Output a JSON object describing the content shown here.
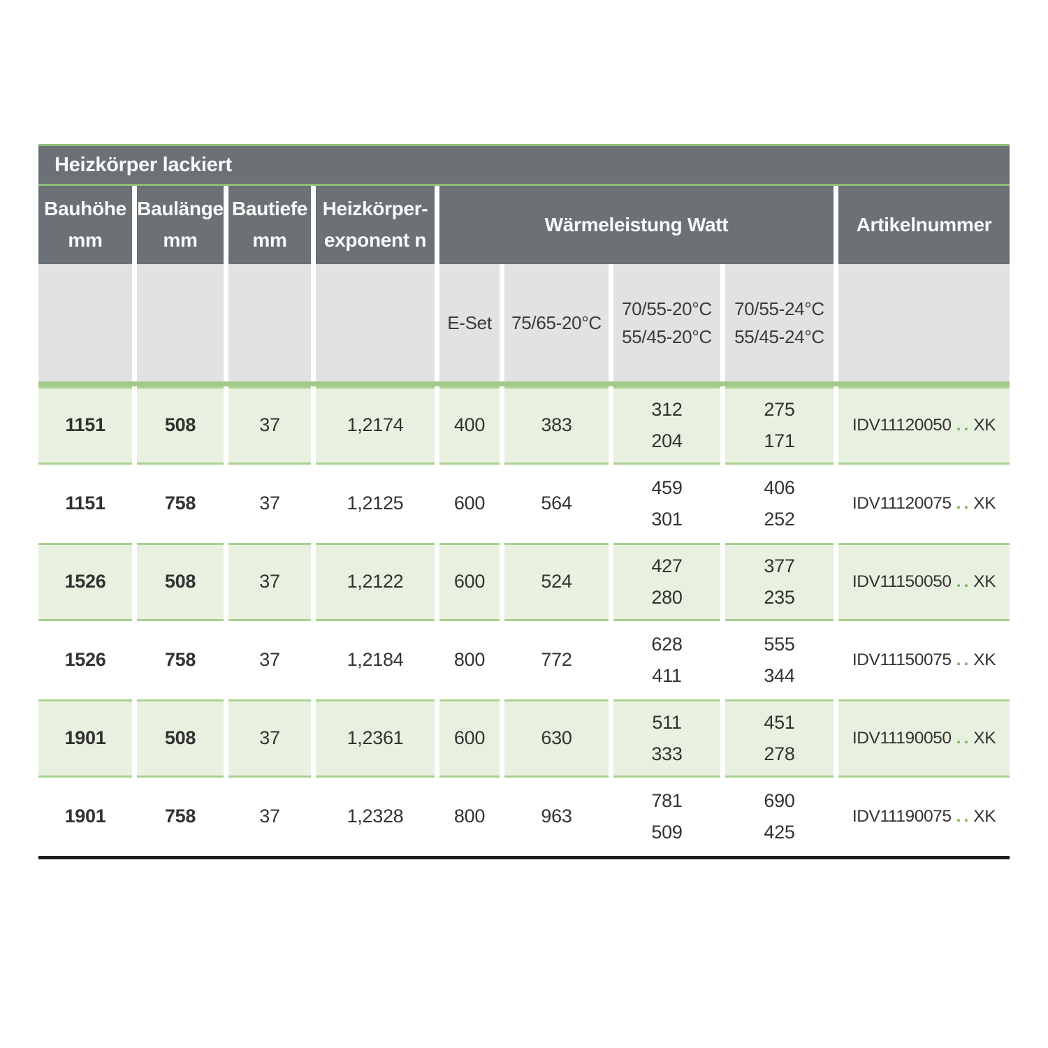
{
  "colors": {
    "header_gray": "#6b7174",
    "subheader_gray": "#e1e2e2",
    "row_green": "#e8f1e0",
    "border_green": "#a9d191",
    "accent_green": "#8fbf77",
    "accent_green_light": "#9fcb86",
    "dot_green": "#74b952",
    "bottom_line": "#1d1d1b"
  },
  "table": {
    "title": "Heizkörper lackiert",
    "columns": [
      {
        "label_lines": [
          "Bauhöhe",
          "mm"
        ]
      },
      {
        "label_lines": [
          "Baulänge",
          "mm"
        ]
      },
      {
        "label_lines": [
          "Bautiefe",
          "mm"
        ]
      },
      {
        "label_lines": [
          "Heizkörper-",
          "exponent n"
        ]
      },
      {
        "label": "Wärmeleistung Watt"
      },
      {
        "label": "Artikelnummer"
      }
    ],
    "subheaders": [
      "",
      "",
      "",
      "",
      "E-Set",
      "75/65-20°C",
      [
        "70/55-20°C",
        "55/45-20°C"
      ],
      [
        "70/55-24°C",
        "55/45-24°C"
      ],
      ""
    ],
    "rows": [
      {
        "shade": "green",
        "bauhoehe": "1151",
        "baulaenge": "508",
        "bautiefe": "37",
        "exponent": "1,2174",
        "e_set": "400",
        "w_75_65": "383",
        "w_70_55_20": [
          "312",
          "204"
        ],
        "w_70_55_24": [
          "275",
          "171"
        ],
        "artikel": {
          "prefix": "IDV11120050",
          "dots": "..",
          "suffix": "XK"
        }
      },
      {
        "shade": "white",
        "bauhoehe": "1151",
        "baulaenge": "758",
        "bautiefe": "37",
        "exponent": "1,2125",
        "e_set": "600",
        "w_75_65": "564",
        "w_70_55_20": [
          "459",
          "301"
        ],
        "w_70_55_24": [
          "406",
          "252"
        ],
        "artikel": {
          "prefix": "IDV11120075",
          "dots": "..",
          "suffix": "XK"
        }
      },
      {
        "shade": "green",
        "bauhoehe": "1526",
        "baulaenge": "508",
        "bautiefe": "37",
        "exponent": "1,2122",
        "e_set": "600",
        "w_75_65": "524",
        "w_70_55_20": [
          "427",
          "280"
        ],
        "w_70_55_24": [
          "377",
          "235"
        ],
        "artikel": {
          "prefix": "IDV11150050",
          "dots": "..",
          "suffix": "XK"
        }
      },
      {
        "shade": "white",
        "bauhoehe": "1526",
        "baulaenge": "758",
        "bautiefe": "37",
        "exponent": "1,2184",
        "e_set": "800",
        "w_75_65": "772",
        "w_70_55_20": [
          "628",
          "411"
        ],
        "w_70_55_24": [
          "555",
          "344"
        ],
        "artikel": {
          "prefix": "IDV11150075",
          "dots": "..",
          "suffix": "XK"
        }
      },
      {
        "shade": "green",
        "bauhoehe": "1901",
        "baulaenge": "508",
        "bautiefe": "37",
        "exponent": "1,2361",
        "e_set": "600",
        "w_75_65": "630",
        "w_70_55_20": [
          "511",
          "333"
        ],
        "w_70_55_24": [
          "451",
          "278"
        ],
        "artikel": {
          "prefix": "IDV11190050",
          "dots": "..",
          "suffix": "XK"
        }
      },
      {
        "shade": "white",
        "bauhoehe": "1901",
        "baulaenge": "758",
        "bautiefe": "37",
        "exponent": "1,2328",
        "e_set": "800",
        "w_75_65": "963",
        "w_70_55_20": [
          "781",
          "509"
        ],
        "w_70_55_24": [
          "690",
          "425"
        ],
        "artikel": {
          "prefix": "IDV11190075",
          "dots": "..",
          "suffix": "XK"
        }
      }
    ]
  }
}
